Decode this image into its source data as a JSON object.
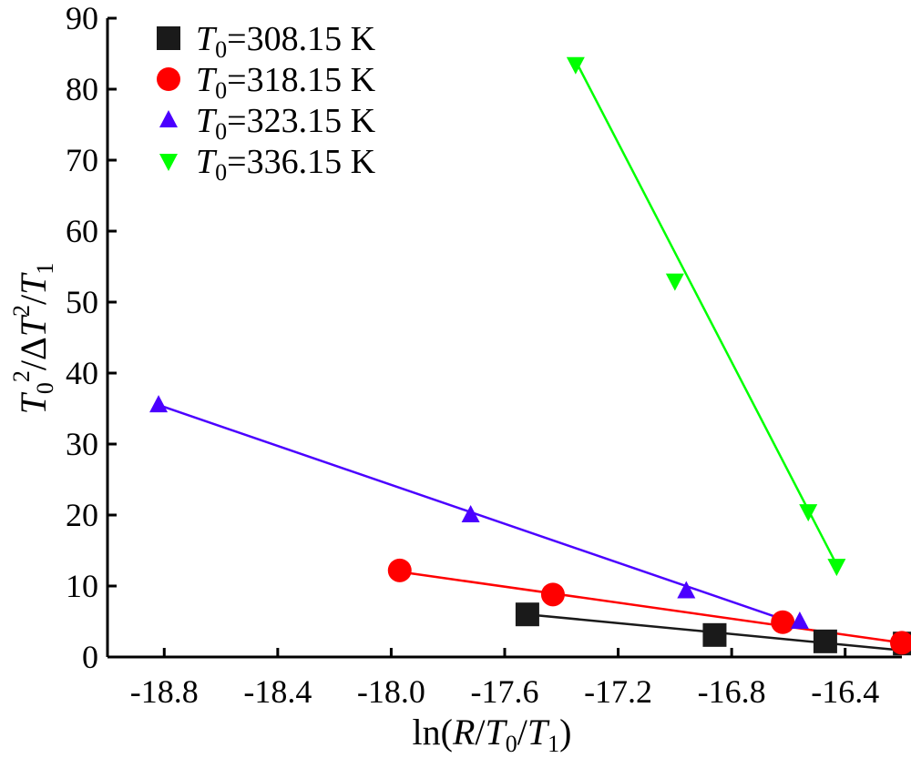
{
  "chart_data": {
    "type": "scatter",
    "title": "",
    "xlabel": {
      "prefix": "ln(",
      "R": "R",
      "slash1": "/",
      "T": "T",
      "sub0": "0",
      "slash2": "/",
      "T2": "T",
      "sub1": "1",
      "suffix": ")"
    },
    "ylabel": {
      "T": "T",
      "sub0": "0",
      "sup2": "2",
      "slash": "/",
      "delta": "Δ",
      "T2": "T",
      "sup2b": "2",
      "slash2": "/",
      "T3": "T",
      "sub1": "1"
    },
    "xlim": [
      -19.0,
      -16.2
    ],
    "ylim": [
      0,
      90
    ],
    "x_ticks": [
      -18.8,
      -18.4,
      -18.0,
      -17.6,
      -17.2,
      -16.8,
      -16.4
    ],
    "x_tick_labels": [
      "-18.8",
      "-18.4",
      "-18.0",
      "-17.6",
      "-17.2",
      "-16.8",
      "-16.4"
    ],
    "y_ticks": [
      0,
      10,
      20,
      30,
      40,
      50,
      60,
      70,
      80,
      90
    ],
    "y_tick_labels": [
      "0",
      "10",
      "20",
      "30",
      "40",
      "50",
      "60",
      "70",
      "80",
      "90"
    ],
    "legend_position": "top-left",
    "grid": false,
    "series": [
      {
        "name_var": "T",
        "name_sub": "0",
        "name_value": "=308.15 K",
        "marker": "square",
        "color": "#1a1a1a",
        "x": [
          -17.52,
          -16.86,
          -16.47,
          -16.19
        ],
        "y": [
          6.0,
          3.1,
          2.2,
          1.9
        ],
        "fit": {
          "x": [
            -17.52,
            -16.19
          ],
          "y": [
            6.0,
            0.9
          ]
        }
      },
      {
        "name_var": "T",
        "name_sub": "0",
        "name_value": "=318.15 K",
        "marker": "circle",
        "color": "#ff0000",
        "x": [
          -17.97,
          -17.43,
          -16.62,
          -16.2
        ],
        "y": [
          12.2,
          8.8,
          4.9,
          2.0
        ],
        "fit": {
          "x": [
            -17.97,
            -16.2
          ],
          "y": [
            12.0,
            2.0
          ]
        }
      },
      {
        "name_var": "T",
        "name_sub": "0",
        "name_value": "=323.15 K",
        "marker": "triangle-up",
        "color": "#4b00ff",
        "x": [
          -18.82,
          -17.72,
          -16.96,
          -16.56
        ],
        "y": [
          35.5,
          20.0,
          9.3,
          5.0
        ],
        "fit": {
          "x": [
            -18.82,
            -16.56
          ],
          "y": [
            35.5,
            4.5
          ]
        }
      },
      {
        "name_var": "T",
        "name_sub": "0",
        "name_value": "=336.15 K",
        "marker": "triangle-down",
        "color": "#00ff00",
        "x": [
          -17.35,
          -17.0,
          -16.53,
          -16.43
        ],
        "y": [
          83.5,
          53.0,
          20.5,
          12.8
        ],
        "fit": {
          "x": [
            -17.35,
            -16.43
          ],
          "y": [
            84.0,
            13.0
          ]
        }
      }
    ]
  }
}
